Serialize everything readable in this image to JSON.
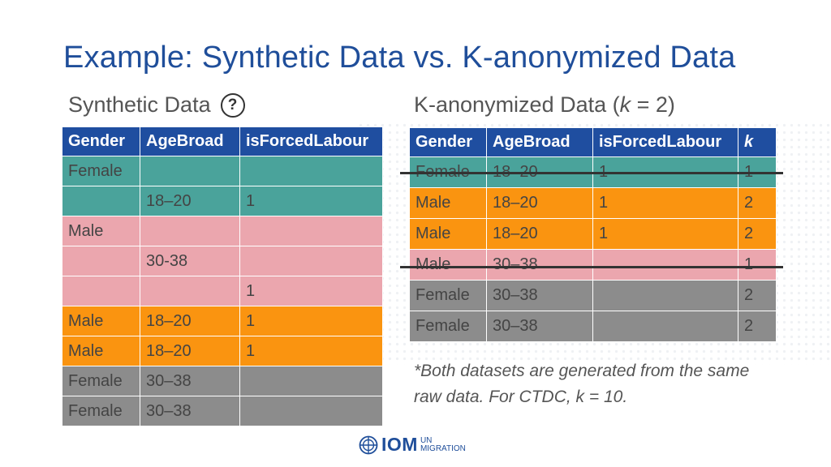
{
  "title": "Example: Synthetic Data vs. K-anonymized Data",
  "synthetic": {
    "label": "Synthetic Data",
    "help_icon": "question-circle-icon",
    "help_glyph": "?",
    "headers": [
      "Gender",
      "AgeBroad",
      "isForcedLabour"
    ],
    "rows": [
      {
        "color": "#4aa39b",
        "cells": [
          "Female",
          "",
          ""
        ]
      },
      {
        "color": "#4aa39b",
        "cells": [
          "",
          "18–20",
          "1"
        ]
      },
      {
        "color": "#eba6ae",
        "cells": [
          "Male",
          "",
          ""
        ]
      },
      {
        "color": "#eba6ae",
        "cells": [
          "",
          "30-38",
          ""
        ]
      },
      {
        "color": "#eba6ae",
        "cells": [
          "",
          "",
          "1"
        ]
      },
      {
        "color": "#fa9410",
        "cells": [
          "Male",
          "18–20",
          "1"
        ]
      },
      {
        "color": "#fa9410",
        "cells": [
          "Male",
          "18–20",
          "1"
        ]
      },
      {
        "color": "#8c8c8c",
        "cells": [
          "Female",
          "30–38",
          ""
        ]
      },
      {
        "color": "#8c8c8c",
        "cells": [
          "Female",
          "30–38",
          ""
        ]
      }
    ]
  },
  "kanon": {
    "label_prefix": "K-anonymized Data (",
    "label_k": "k",
    "label_suffix": " = 2)",
    "headers": [
      "Gender",
      "AgeBroad",
      "isForcedLabour",
      "k"
    ],
    "rows": [
      {
        "color": "#4aa39b",
        "struck": true,
        "cells": [
          "Female",
          "18–20",
          "1",
          "1"
        ]
      },
      {
        "color": "#fa9410",
        "struck": false,
        "cells": [
          "Male",
          "18–20",
          "1",
          "2"
        ]
      },
      {
        "color": "#fa9410",
        "struck": false,
        "cells": [
          "Male",
          "18–20",
          "1",
          "2"
        ]
      },
      {
        "color": "#eba6ae",
        "struck": true,
        "cells": [
          "Male",
          "30–38",
          "",
          "1"
        ]
      },
      {
        "color": "#8c8c8c",
        "struck": false,
        "cells": [
          "Female",
          "30–38",
          "",
          "2"
        ]
      },
      {
        "color": "#8c8c8c",
        "struck": false,
        "cells": [
          "Female",
          "30–38",
          "",
          "2"
        ]
      }
    ]
  },
  "note": "*Both datasets are generated from the same raw data. For CTDC, k = 10.",
  "logo": {
    "icon": "un-emblem-icon",
    "text": "IOM",
    "line1": "UN",
    "line2": "MIGRATION"
  },
  "colors": {
    "title": "#1f4e9a",
    "header": "#1f4ea0",
    "teal": "#4aa39b",
    "pink": "#eba6ae",
    "orange": "#fa9410",
    "gray": "#8c8c8c"
  }
}
